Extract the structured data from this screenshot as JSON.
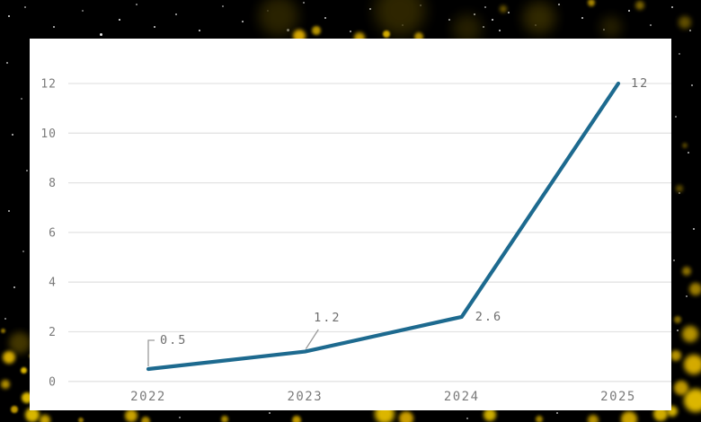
{
  "chart_data": {
    "type": "line",
    "title": "",
    "xlabel": "",
    "ylabel": "",
    "categories": [
      "2022",
      "2023",
      "2024",
      "2025"
    ],
    "values": [
      0.5,
      1.2,
      2.6,
      12
    ],
    "data_labels": [
      "0.5",
      "1.2",
      "2.6",
      "12"
    ],
    "ylim": [
      0,
      12
    ],
    "yticks": [
      0,
      2,
      4,
      6,
      8,
      10,
      12
    ],
    "grid": "horizontal",
    "legend": "none",
    "colors": {
      "line": "#1d6a8f",
      "gridline": "#e3e3e3",
      "tick_label": "#7a7a7a",
      "annotation_text": "#6e6e6e",
      "annotation_leader": "#9a9a9a",
      "card_background": "#ffffff",
      "outer_background": "#000000",
      "particle_gold_bright": "#e8c000",
      "particle_gold_dim": "#4a3c00",
      "particle_star": "#ffffff"
    }
  }
}
